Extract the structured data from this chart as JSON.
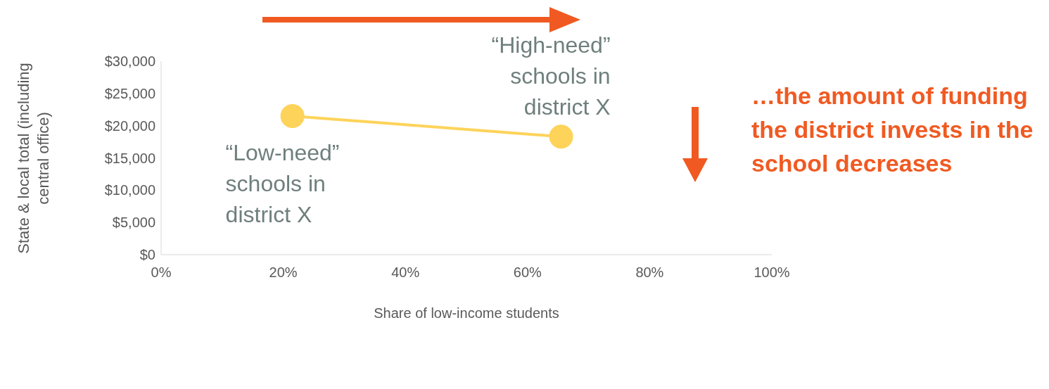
{
  "chart_data": {
    "type": "line",
    "xlabel": "Share of low-income students",
    "ylabel": "State & local total (including central office)",
    "x": [
      21.5,
      65.5
    ],
    "series": [
      {
        "color": "#fdd35a",
        "values": [
          21500,
          18300
        ]
      }
    ],
    "xlim": [
      0,
      100
    ],
    "xticks": [
      {
        "value": 0,
        "label": "0%"
      },
      {
        "value": 20,
        "label": "20%"
      },
      {
        "value": 40,
        "label": "40%"
      },
      {
        "value": 60,
        "label": "60%"
      },
      {
        "value": 80,
        "label": "80%"
      },
      {
        "value": 100,
        "label": "100%"
      }
    ],
    "ylim": [
      0,
      30000
    ],
    "yticks": [
      {
        "value": 0,
        "label": "$0"
      },
      {
        "value": 5000,
        "label": "$5,000"
      },
      {
        "value": 10000,
        "label": "$10,000"
      },
      {
        "value": 15000,
        "label": "$15,000"
      },
      {
        "value": 20000,
        "label": "$20,000"
      },
      {
        "value": 25000,
        "label": "$25,000"
      },
      {
        "value": 30000,
        "label": "$30,000"
      }
    ],
    "grid": false,
    "legend": false,
    "marker": "circle",
    "line_style": "solid",
    "annotations": [
      {
        "text": "“High-need” schools in district X",
        "x": 65.5,
        "y": 18300
      },
      {
        "text": "“Low-need” schools in district X",
        "x": 21.5,
        "y": 21500
      },
      "…the amount of funding the district invests in the school decreases"
    ]
  }
}
